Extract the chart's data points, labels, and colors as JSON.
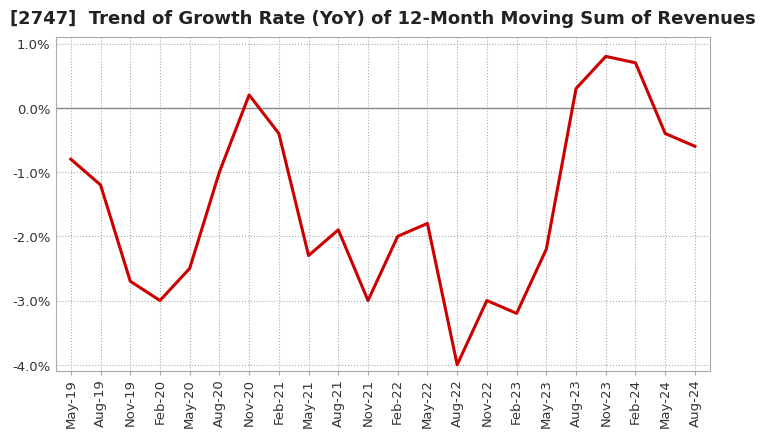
{
  "title": "[2747]  Trend of Growth Rate (YoY) of 12-Month Moving Sum of Revenues",
  "x_labels": [
    "May-19",
    "Aug-19",
    "Nov-19",
    "Feb-20",
    "May-20",
    "Aug-20",
    "Nov-20",
    "Feb-21",
    "May-21",
    "Aug-21",
    "Nov-21",
    "Feb-22",
    "May-22",
    "Aug-22",
    "Nov-22",
    "Feb-23",
    "May-23",
    "Aug-23",
    "Nov-23",
    "Feb-24",
    "May-24",
    "Aug-24"
  ],
  "y_values": [
    -0.008,
    -0.012,
    -0.027,
    -0.03,
    -0.025,
    -0.01,
    0.002,
    -0.004,
    -0.023,
    -0.019,
    -0.03,
    -0.02,
    -0.018,
    -0.04,
    -0.03,
    -0.032,
    -0.022,
    0.003,
    0.008,
    0.007,
    -0.004,
    -0.006
  ],
  "line_color": "#cc0000",
  "line_width": 2.2,
  "ylim": [
    -0.041,
    0.011
  ],
  "yticks": [
    -0.04,
    -0.03,
    -0.02,
    -0.01,
    0.0,
    0.01
  ],
  "ytick_labels": [
    "-4.0%",
    "-3.0%",
    "-2.0%",
    "-1.0%",
    "0.0%",
    "1.0%"
  ],
  "background_color": "#ffffff",
  "plot_bg_color": "#ffffff",
  "grid_color": "#aaaaaa",
  "spine_color": "#aaaaaa",
  "title_fontsize": 13,
  "tick_fontsize": 9.5
}
